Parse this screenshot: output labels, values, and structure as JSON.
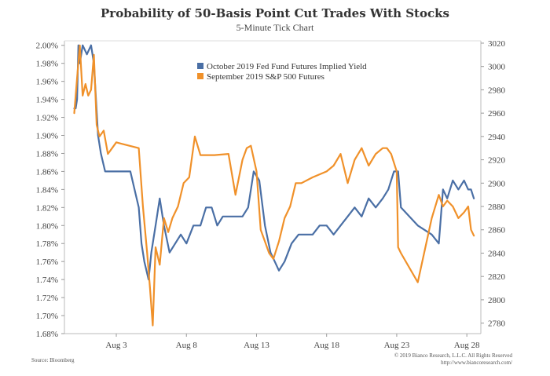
{
  "chart_data": {
    "type": "line",
    "title": "Probability of 50-Basis Point Cut Trades With Stocks",
    "subtitle": "5-Minute Tick Chart",
    "x_ticks": [
      "Aug 3",
      "Aug 8",
      "Aug 13",
      "Aug 18",
      "Aug 23",
      "Aug 28"
    ],
    "x_tick_days": [
      3,
      8,
      13,
      18,
      23,
      28
    ],
    "xlim": [
      -0.7,
      29
    ],
    "left_axis": {
      "ylim": [
        1.68,
        2.005
      ],
      "ticks": [
        1.68,
        1.7,
        1.72,
        1.74,
        1.76,
        1.78,
        1.8,
        1.82,
        1.84,
        1.86,
        1.88,
        1.9,
        1.92,
        1.94,
        1.96,
        1.98,
        2.0
      ],
      "tick_labels": [
        "1.68%",
        "1.70%",
        "1.72%",
        "1.74%",
        "1.76%",
        "1.78%",
        "1.80%",
        "1.82%",
        "1.84%",
        "1.86%",
        "1.88%",
        "1.90%",
        "1.92%",
        "1.94%",
        "1.96%",
        "1.98%",
        "2.00%"
      ]
    },
    "right_axis": {
      "ylim": [
        2771,
        3022
      ],
      "ticks": [
        2780,
        2800,
        2820,
        2840,
        2860,
        2880,
        2900,
        2920,
        2940,
        2960,
        2980,
        3000,
        3020
      ],
      "tick_labels": [
        "2780",
        "2800",
        "2820",
        "2840",
        "2860",
        "2880",
        "2900",
        "2920",
        "2940",
        "2960",
        "2980",
        "3000",
        "3020"
      ]
    },
    "series": [
      {
        "name": "October 2019 Fed Fund Futures Implied Yield",
        "axis": "left",
        "color": "#4a6fa5",
        "x": [
          0.0,
          0.1,
          0.2,
          0.3,
          0.4,
          0.6,
          0.9,
          1.2,
          1.4,
          1.7,
          1.9,
          2.2,
          2.6,
          3.0,
          3.3,
          4.0,
          4.6,
          4.8,
          5.0,
          5.3,
          5.5,
          5.8,
          6.1,
          6.4,
          6.8,
          7.2,
          7.6,
          8.0,
          8.5,
          9.0,
          9.4,
          9.8,
          10.2,
          10.6,
          11.0,
          11.4,
          11.7,
          12.0,
          12.4,
          12.8,
          13.2,
          13.6,
          14.0,
          14.3,
          14.6,
          15.0,
          15.5,
          16.0,
          16.5,
          17.0,
          17.5,
          18.0,
          18.5,
          19.0,
          19.5,
          20.0,
          20.5,
          21.0,
          21.5,
          22.0,
          22.4,
          22.8,
          23.1,
          23.3,
          24.5,
          25.5,
          26.0,
          26.3,
          26.6,
          27.0,
          27.4,
          27.8,
          28.1,
          28.3,
          28.5
        ],
        "values": [
          1.93,
          1.93,
          1.94,
          2.0,
          1.98,
          2.0,
          1.99,
          2.0,
          1.98,
          1.9,
          1.88,
          1.86,
          1.86,
          1.86,
          1.86,
          1.86,
          1.82,
          1.78,
          1.76,
          1.74,
          1.77,
          1.8,
          1.83,
          1.8,
          1.77,
          1.78,
          1.79,
          1.78,
          1.8,
          1.8,
          1.82,
          1.82,
          1.8,
          1.81,
          1.81,
          1.81,
          1.81,
          1.81,
          1.82,
          1.86,
          1.85,
          1.8,
          1.77,
          1.76,
          1.75,
          1.76,
          1.78,
          1.79,
          1.79,
          1.79,
          1.8,
          1.8,
          1.79,
          1.8,
          1.81,
          1.82,
          1.81,
          1.83,
          1.82,
          1.83,
          1.84,
          1.86,
          1.86,
          1.82,
          1.8,
          1.79,
          1.78,
          1.84,
          1.83,
          1.85,
          1.84,
          1.85,
          1.84,
          1.84,
          1.83
        ]
      },
      {
        "name": "September 2019 S&P 500 Futures",
        "axis": "right",
        "color": "#f0912a",
        "x": [
          0.0,
          0.2,
          0.4,
          0.6,
          0.8,
          1.0,
          1.2,
          1.4,
          1.6,
          1.8,
          2.1,
          2.4,
          2.7,
          3.0,
          3.3,
          4.6,
          4.9,
          5.2,
          5.4,
          5.6,
          5.8,
          6.1,
          6.4,
          6.7,
          7.0,
          7.4,
          7.8,
          8.2,
          8.6,
          9.0,
          9.3,
          10.0,
          11.0,
          11.5,
          12.0,
          12.3,
          12.6,
          13.0,
          13.3,
          13.6,
          13.9,
          14.2,
          14.6,
          15.0,
          15.4,
          15.8,
          16.2,
          17.0,
          18.0,
          18.5,
          19.0,
          19.5,
          20.0,
          20.5,
          21.0,
          21.5,
          22.0,
          22.3,
          22.6,
          23.0,
          23.1,
          23.3,
          24.5,
          25.5,
          26.0,
          26.3,
          26.6,
          27.0,
          27.4,
          27.8,
          28.1,
          28.3,
          28.5
        ],
        "values": [
          2960,
          2990,
          3018,
          2975,
          2985,
          2975,
          2980,
          3010,
          2950,
          2940,
          2945,
          2925,
          2930,
          2935,
          2934,
          2930,
          2880,
          2840,
          2810,
          2778,
          2845,
          2830,
          2870,
          2858,
          2870,
          2880,
          2900,
          2905,
          2940,
          2924,
          2924,
          2924,
          2925,
          2890,
          2920,
          2930,
          2932,
          2910,
          2860,
          2850,
          2840,
          2835,
          2850,
          2870,
          2880,
          2900,
          2900,
          2905,
          2910,
          2915,
          2925,
          2900,
          2920,
          2930,
          2915,
          2925,
          2930,
          2930,
          2925,
          2910,
          2845,
          2840,
          2815,
          2870,
          2890,
          2880,
          2885,
          2880,
          2870,
          2875,
          2880,
          2860,
          2855
        ]
      }
    ],
    "legend_placement": "top-center",
    "grid": false
  },
  "footer": {
    "source": "Source: Bloomberg",
    "copyright": "© 2019 Bianco Research, L.L.C. All Rights Reserved",
    "website": "http://www.biancoresearch.com/"
  }
}
